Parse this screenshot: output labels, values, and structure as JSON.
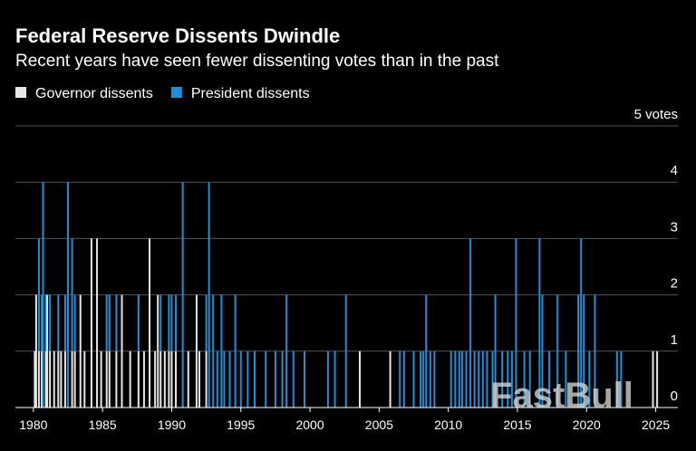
{
  "chart_data": {
    "type": "bar",
    "title": "Federal Reserve Dissents Dwindle",
    "subtitle": "Recent years have seen fewer dissenting votes than in the past",
    "watermark": "FastBull",
    "x": [
      1980.1,
      1980.2,
      1980.4,
      1980.6,
      1980.7,
      1980.9,
      1981.0,
      1981.2,
      1981.5,
      1981.8,
      1982.0,
      1982.3,
      1982.5,
      1982.8,
      1983.0,
      1983.4,
      1983.7,
      1984.2,
      1984.6,
      1984.9,
      1985.3,
      1985.5,
      1986.0,
      1986.4,
      1987.0,
      1987.6,
      1988.0,
      1988.4,
      1988.8,
      1989.0,
      1989.2,
      1989.5,
      1989.8,
      1990.0,
      1990.3,
      1990.8,
      1991.2,
      1991.8,
      1992.0,
      1992.5,
      1992.7,
      1993.0,
      1993.3,
      1993.6,
      1993.8,
      1994.2,
      1994.6,
      1995.0,
      1995.5,
      1996.0,
      1996.8,
      1997.5,
      1998.0,
      1998.3,
      1998.8,
      1999.6,
      2001.3,
      2001.8,
      2002.6,
      2003.6,
      2005.8,
      2006.5,
      2006.8,
      2007.5,
      2008.0,
      2008.2,
      2008.4,
      2008.7,
      2009.0,
      2010.2,
      2010.5,
      2010.8,
      2011.0,
      2011.3,
      2011.6,
      2011.9,
      2012.2,
      2012.5,
      2012.8,
      2013.2,
      2013.4,
      2013.9,
      2014.3,
      2014.6,
      2014.9,
      2015.5,
      2015.9,
      2016.6,
      2016.8,
      2017.3,
      2017.9,
      2018.5,
      2019.4,
      2019.6,
      2019.8,
      2020.2,
      2020.6,
      2022.2,
      2022.5,
      2024.8,
      2025.1
    ],
    "series": [
      {
        "name": "Governor dissents",
        "color": "#e6e6e6",
        "values": [
          1,
          2,
          1,
          1,
          0,
          1,
          2,
          1,
          1,
          1,
          1,
          1,
          0,
          1,
          1,
          2,
          1,
          3,
          3,
          1,
          1,
          1,
          1,
          2,
          1,
          1,
          1,
          3,
          1,
          2,
          1,
          1,
          1,
          1,
          1,
          0,
          1,
          2,
          1,
          1,
          0,
          0,
          0,
          0,
          0,
          0,
          0,
          0,
          0,
          0,
          0,
          0,
          0,
          0,
          0,
          0,
          0,
          0,
          0,
          1,
          1,
          0,
          0,
          0,
          0,
          0,
          0,
          0,
          0,
          0,
          0,
          0,
          0,
          0,
          0,
          0,
          0,
          0,
          0,
          0,
          0,
          0,
          0,
          0,
          0,
          0,
          0,
          0,
          0,
          0,
          0,
          0,
          0,
          0,
          0,
          0,
          0,
          0,
          0,
          1,
          1
        ]
      },
      {
        "name": "President dissents",
        "color": "#1f8fd6",
        "values": [
          0,
          0,
          2,
          1,
          4,
          1,
          0,
          1,
          0,
          1,
          0,
          1,
          4,
          2,
          1,
          0,
          0,
          0,
          0,
          0,
          1,
          1,
          1,
          0,
          0,
          1,
          0,
          0,
          0,
          0,
          1,
          0,
          1,
          1,
          1,
          4,
          0,
          0,
          0,
          1,
          4,
          2,
          1,
          2,
          1,
          1,
          2,
          1,
          1,
          1,
          1,
          1,
          1,
          2,
          1,
          1,
          1,
          1,
          2,
          0,
          0,
          1,
          1,
          1,
          1,
          1,
          2,
          1,
          1,
          1,
          1,
          1,
          1,
          1,
          3,
          1,
          1,
          1,
          1,
          1,
          2,
          1,
          1,
          1,
          3,
          1,
          1,
          3,
          2,
          1,
          2,
          1,
          2,
          3,
          2,
          1,
          2,
          1,
          1,
          0,
          0
        ]
      }
    ],
    "xlim": [
      1978.7,
      2026.6
    ],
    "xticks": [
      1980,
      1985,
      1990,
      1995,
      2000,
      2005,
      2010,
      2015,
      2020,
      2025
    ],
    "ylim": [
      0,
      5
    ],
    "yticks": [
      0,
      1,
      2,
      3,
      4,
      {
        "value": 5,
        "label": "5 votes"
      }
    ],
    "grid": true,
    "stacked": true,
    "legend": "top-left"
  }
}
